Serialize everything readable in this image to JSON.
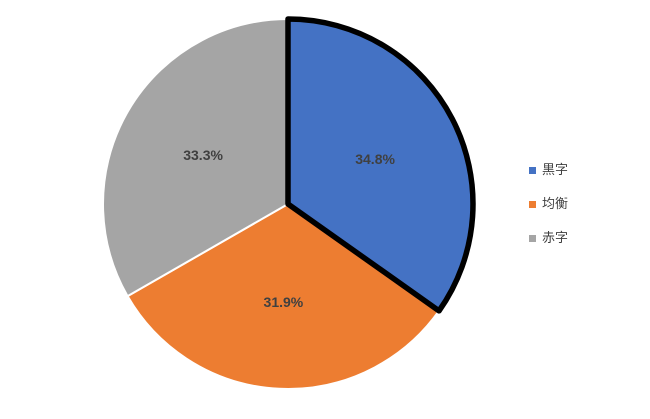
{
  "chart_data": {
    "type": "pie",
    "title": "",
    "start_angle_deg": 0,
    "direction": "clockwise",
    "slices": [
      {
        "label": "黒字",
        "value": 34.8,
        "display": "34.8%",
        "color": "#4472C4",
        "emphasized": true,
        "border_color": "#000000"
      },
      {
        "label": "均衡",
        "value": 31.9,
        "display": "31.9%",
        "color": "#ED7D31",
        "emphasized": false
      },
      {
        "label": "赤字",
        "value": 33.3,
        "display": "33.3%",
        "color": "#A5A5A5",
        "emphasized": false
      }
    ],
    "label_color": "#404040",
    "separator_color": "#FFFFFF",
    "legend": {
      "position": "right",
      "items": [
        "黒字",
        "均衡",
        "赤字"
      ]
    }
  }
}
